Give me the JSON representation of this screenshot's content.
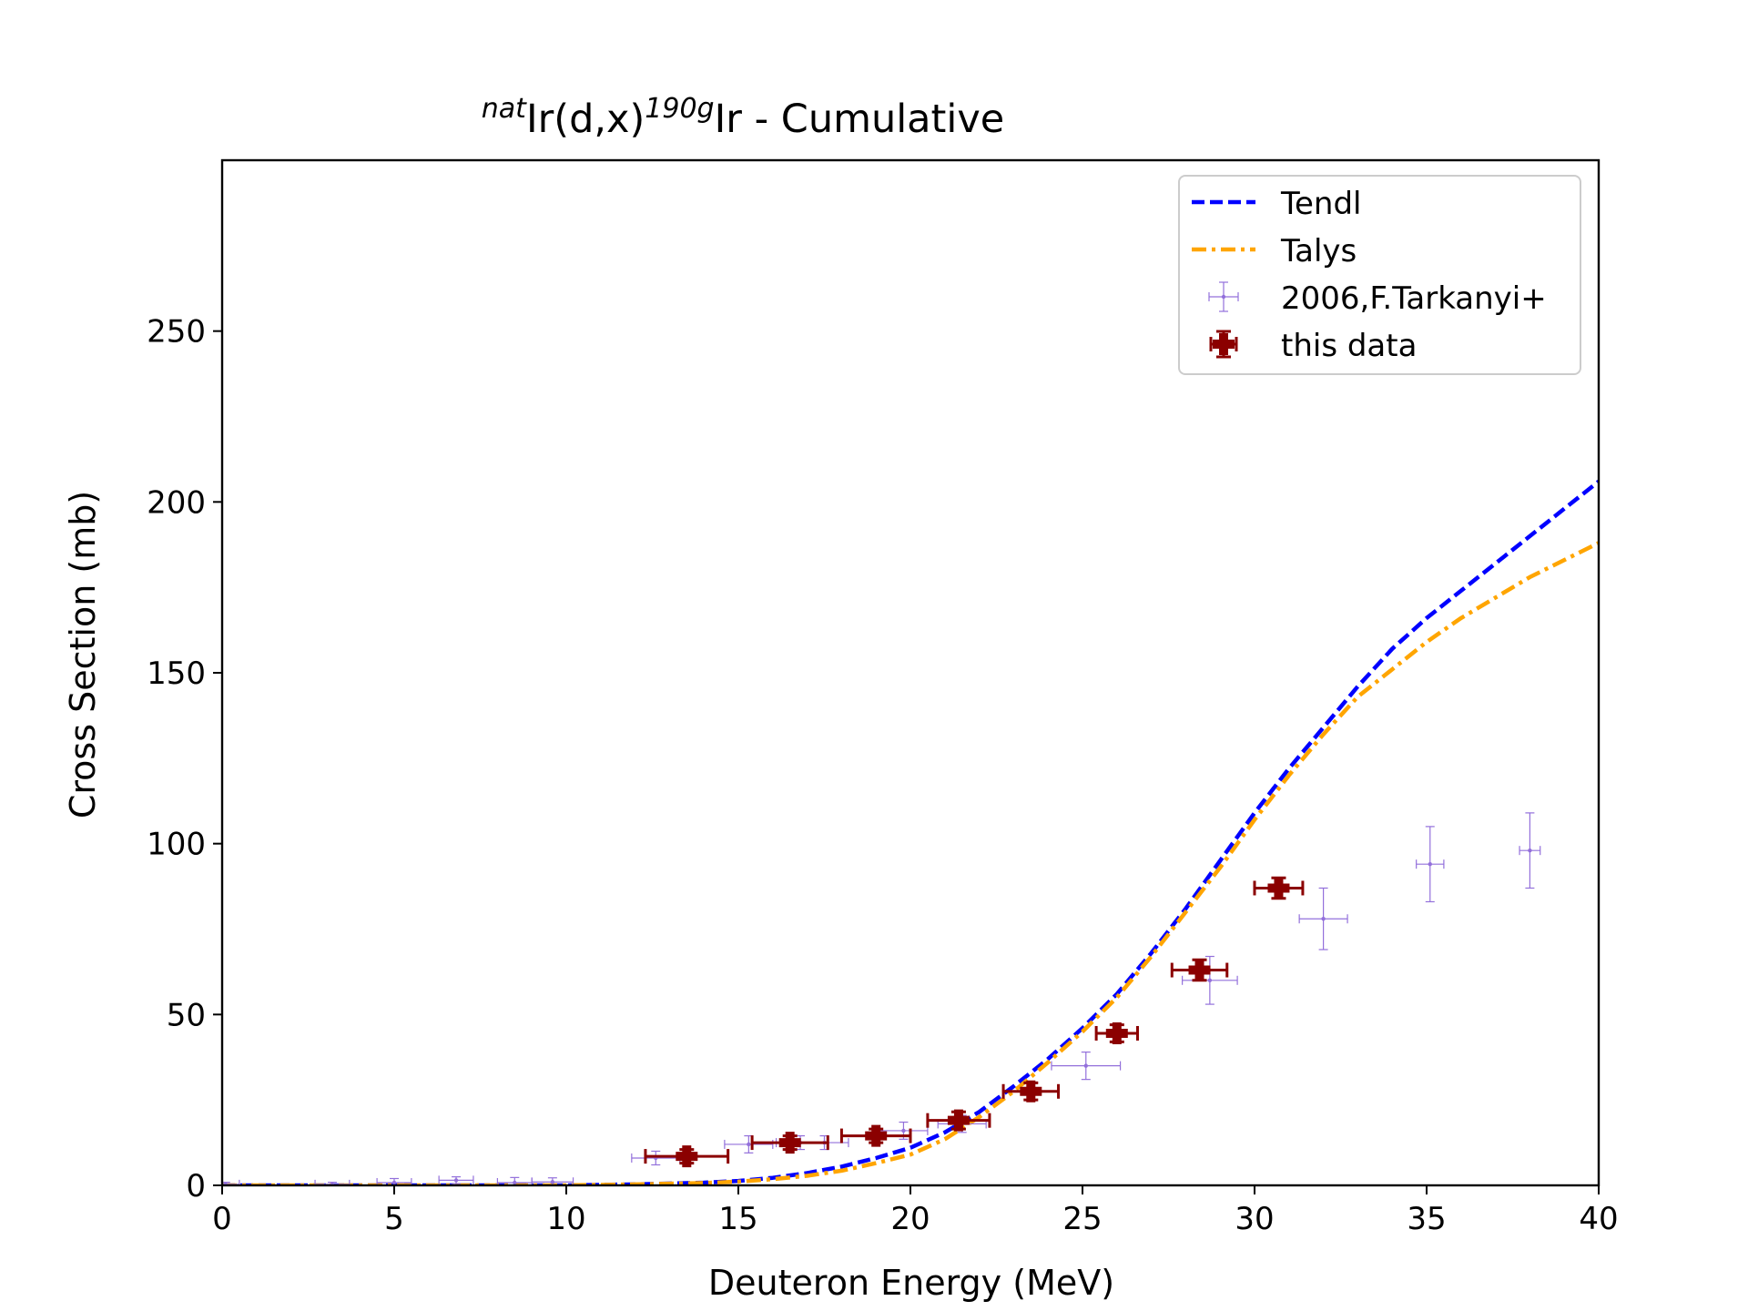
{
  "chart_data": {
    "type": "scatter",
    "title": {
      "sup1": "nat",
      "text1": "Ir(d,x)",
      "sup2": "190g",
      "text2": "Ir - Cumulative"
    },
    "xlabel": "Deuteron Energy (MeV)",
    "ylabel": "Cross Section (mb)",
    "xlim": [
      0,
      40
    ],
    "ylim": [
      0,
      300
    ],
    "xticks": [
      0,
      5,
      10,
      15,
      20,
      25,
      30,
      35,
      40
    ],
    "yticks": [
      0,
      50,
      100,
      150,
      200,
      250
    ],
    "xtick_labels": [
      "0",
      "5",
      "10",
      "15",
      "20",
      "25",
      "30",
      "35",
      "40"
    ],
    "ytick_labels": [
      "0",
      "50",
      "100",
      "150",
      "200",
      "250"
    ],
    "legend_position": "top-right",
    "series": [
      {
        "name": "Tendl",
        "kind": "line",
        "style": "dashed",
        "color": "#0000ff",
        "points": [
          [
            0,
            0
          ],
          [
            10,
            0
          ],
          [
            12,
            0.3
          ],
          [
            14,
            0.8
          ],
          [
            15,
            1.3
          ],
          [
            16,
            2.2
          ],
          [
            17,
            3.6
          ],
          [
            18,
            5.5
          ],
          [
            19,
            8
          ],
          [
            20,
            11
          ],
          [
            21,
            15.5
          ],
          [
            22,
            21.5
          ],
          [
            23,
            29
          ],
          [
            24,
            37
          ],
          [
            25,
            46
          ],
          [
            26,
            56
          ],
          [
            27,
            68
          ],
          [
            28,
            81
          ],
          [
            29,
            95
          ],
          [
            30,
            109
          ],
          [
            31,
            122
          ],
          [
            32,
            134
          ],
          [
            33,
            146
          ],
          [
            34,
            157
          ],
          [
            35,
            166
          ],
          [
            36,
            174
          ],
          [
            37,
            182
          ],
          [
            38,
            190
          ],
          [
            39,
            198
          ],
          [
            40,
            206
          ]
        ]
      },
      {
        "name": "Talys",
        "kind": "line",
        "style": "dashdot",
        "color": "#ffa500",
        "points": [
          [
            0,
            0
          ],
          [
            10,
            0
          ],
          [
            12,
            0.3
          ],
          [
            14,
            0.7
          ],
          [
            15,
            1.1
          ],
          [
            16,
            1.8
          ],
          [
            17,
            2.8
          ],
          [
            18,
            4.3
          ],
          [
            19,
            6.5
          ],
          [
            20,
            9
          ],
          [
            21,
            13.5
          ],
          [
            22,
            20
          ],
          [
            23,
            27.5
          ],
          [
            24,
            36
          ],
          [
            25,
            45
          ],
          [
            26,
            55
          ],
          [
            27,
            67
          ],
          [
            28,
            80
          ],
          [
            29,
            93
          ],
          [
            30,
            107
          ],
          [
            31,
            120
          ],
          [
            32,
            132
          ],
          [
            33,
            143
          ],
          [
            34,
            151
          ],
          [
            35,
            159
          ],
          [
            36,
            166
          ],
          [
            37,
            172
          ],
          [
            38,
            178
          ],
          [
            39,
            183
          ],
          [
            40,
            188
          ]
        ]
      },
      {
        "name": "2006,F.Tarkanyi+",
        "kind": "errorbar",
        "color": "#9370db",
        "points": [
          {
            "x": 0.1,
            "y": 0.3,
            "xerr": 0.4,
            "yerr": 0.6
          },
          {
            "x": 3.2,
            "y": 0.3,
            "xerr": 0.5,
            "yerr": 0.6
          },
          {
            "x": 5.0,
            "y": 0.8,
            "xerr": 0.5,
            "yerr": 1.2
          },
          {
            "x": 6.8,
            "y": 1.5,
            "xerr": 0.5,
            "yerr": 1.0
          },
          {
            "x": 8.5,
            "y": 0.8,
            "xerr": 0.5,
            "yerr": 1.5
          },
          {
            "x": 9.6,
            "y": 1.0,
            "xerr": 0.6,
            "yerr": 1.2
          },
          {
            "x": 12.6,
            "y": 8.0,
            "xerr": 0.7,
            "yerr": 2.0
          },
          {
            "x": 15.3,
            "y": 12.0,
            "xerr": 0.7,
            "yerr": 2.5
          },
          {
            "x": 16.8,
            "y": 12.5,
            "xerr": 0.7,
            "yerr": 2.0
          },
          {
            "x": 17.5,
            "y": 12.5,
            "xerr": 0.7,
            "yerr": 2.0
          },
          {
            "x": 19.8,
            "y": 16.0,
            "xerr": 0.7,
            "yerr": 2.5
          },
          {
            "x": 21.5,
            "y": 18.0,
            "xerr": 0.7,
            "yerr": 2.5
          },
          {
            "x": 25.1,
            "y": 35.0,
            "xerr": 1.0,
            "yerr": 4.0
          },
          {
            "x": 28.7,
            "y": 60.0,
            "xerr": 0.8,
            "yerr": 7.0
          },
          {
            "x": 32.0,
            "y": 78.0,
            "xerr": 0.7,
            "yerr": 9.0
          },
          {
            "x": 35.1,
            "y": 94.0,
            "xerr": 0.4,
            "yerr": 11.0
          },
          {
            "x": 38.0,
            "y": 98.0,
            "xerr": 0.3,
            "yerr": 11.0
          }
        ]
      },
      {
        "name": "this data",
        "kind": "errorbar",
        "color": "#8b0000",
        "points": [
          {
            "x": 13.5,
            "y": 8.5,
            "xerr": 1.2,
            "yerr": 2.0
          },
          {
            "x": 16.5,
            "y": 12.5,
            "xerr": 1.1,
            "yerr": 2.0
          },
          {
            "x": 19.0,
            "y": 14.5,
            "xerr": 1.0,
            "yerr": 2.0
          },
          {
            "x": 21.4,
            "y": 19.0,
            "xerr": 0.9,
            "yerr": 2.5
          },
          {
            "x": 23.5,
            "y": 27.5,
            "xerr": 0.8,
            "yerr": 2.5
          },
          {
            "x": 26.0,
            "y": 44.5,
            "xerr": 0.6,
            "yerr": 2.5
          },
          {
            "x": 28.4,
            "y": 63.0,
            "xerr": 0.8,
            "yerr": 3.0
          },
          {
            "x": 30.7,
            "y": 87.0,
            "xerr": 0.7,
            "yerr": 3.0
          }
        ]
      }
    ]
  }
}
